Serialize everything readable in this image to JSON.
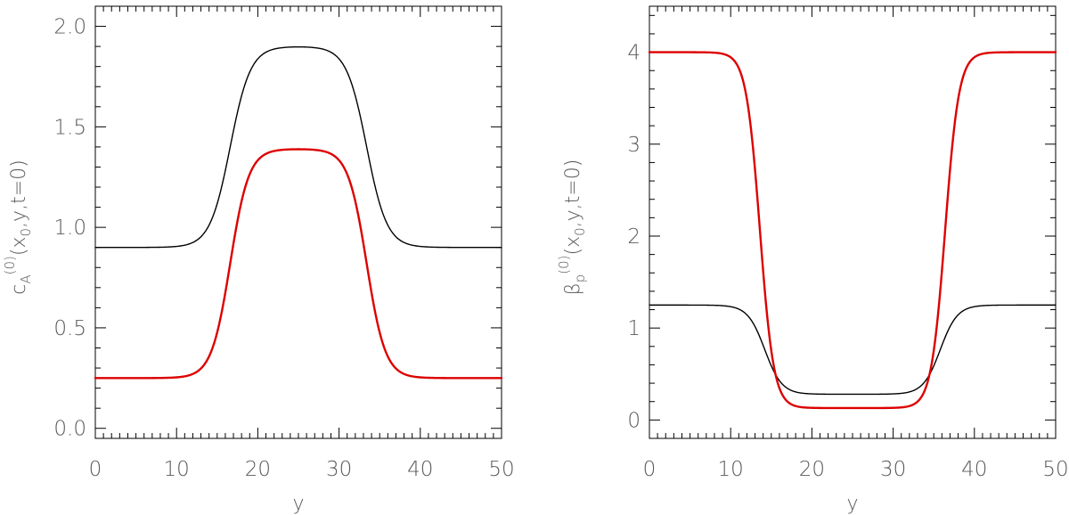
{
  "chart_data": [
    {
      "type": "line",
      "xlabel": "y",
      "ylabel": "c_A^(0)(x_0,y,t=0)",
      "ylabel_parts": {
        "symbol": "c",
        "subscript": "A",
        "superscript": "(0)",
        "args_open": "(x",
        "args_sub": "0",
        "args_close": ",y,t=0)"
      },
      "xlim": [
        0,
        50
      ],
      "ylim": [
        -0.05,
        2.1
      ],
      "xticks": [
        0,
        10,
        20,
        30,
        40,
        50
      ],
      "xtick_labels": [
        "0",
        "10",
        "20",
        "30",
        "40",
        "50"
      ],
      "yticks": [
        0,
        0.5,
        1,
        1.5,
        2
      ],
      "ytick_labels": [
        "0.0",
        "0.5",
        "1.0",
        "1.5",
        "2.0"
      ],
      "grid": false,
      "series": [
        {
          "color": "#000000",
          "profile": {
            "outer": 0.9,
            "inner": 1.9,
            "left_center": 16.6,
            "right_center": 33.4,
            "width": 1.25
          }
        },
        {
          "color": "#dd0000",
          "profile": {
            "outer": 0.25,
            "inner": 1.39,
            "left_center": 16.6,
            "right_center": 33.4,
            "width": 1.15
          }
        }
      ]
    },
    {
      "type": "line",
      "xlabel": "y",
      "ylabel": "β_p^(0)(x_0,y,t=0)",
      "ylabel_parts": {
        "symbol": "β",
        "subscript": "p",
        "superscript": "(0)",
        "args_open": "(x",
        "args_sub": "0",
        "args_close": ",y,t=0)"
      },
      "xlim": [
        0,
        50
      ],
      "ylim": [
        -0.2,
        4.5
      ],
      "xticks": [
        0,
        10,
        20,
        30,
        40,
        50
      ],
      "xtick_labels": [
        "0",
        "10",
        "20",
        "30",
        "40",
        "50"
      ],
      "yticks": [
        0,
        1,
        2,
        3,
        4
      ],
      "ytick_labels": [
        "0",
        "1",
        "2",
        "3",
        "4"
      ],
      "grid": false,
      "series": [
        {
          "color": "#000000",
          "profile": {
            "outer": 1.25,
            "inner": 0.28,
            "left_center": 14.2,
            "right_center": 35.8,
            "width": 1.05
          }
        },
        {
          "color": "#dd0000",
          "profile": {
            "outer": 4.0,
            "inner": 0.13,
            "left_center": 13.6,
            "right_center": 36.4,
            "width": 0.85
          }
        }
      ]
    }
  ]
}
